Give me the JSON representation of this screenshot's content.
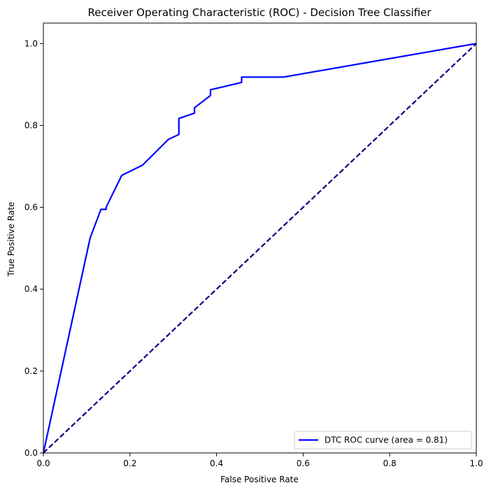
{
  "chart_data": {
    "type": "line",
    "title": "Receiver Operating Characteristic (ROC) - Decision Tree Classifier",
    "xlabel": "False Positive Rate",
    "ylabel": "True Positive Rate",
    "xlim": [
      0.0,
      1.0
    ],
    "ylim": [
      0.0,
      1.05
    ],
    "xticks": [
      0.0,
      0.2,
      0.4,
      0.6,
      0.8,
      1.0
    ],
    "yticks": [
      0.0,
      0.2,
      0.4,
      0.6,
      0.8,
      1.0
    ],
    "xtick_labels": [
      "0.0",
      "0.2",
      "0.4",
      "0.6",
      "0.8",
      "1.0"
    ],
    "ytick_labels": [
      "0.0",
      "0.2",
      "0.4",
      "0.6",
      "0.8",
      "1.0"
    ],
    "grid": false,
    "legend_position": "lower-right",
    "series": [
      {
        "name": "DTC ROC curve (area = 0.81)",
        "color": "#0000ff",
        "style": "solid",
        "x": [
          0.0,
          0.108,
          0.133,
          0.145,
          0.145,
          0.181,
          0.229,
          0.289,
          0.313,
          0.313,
          0.349,
          0.349,
          0.386,
          0.386,
          0.458,
          0.458,
          0.554,
          1.0
        ],
        "y": [
          0.0,
          0.525,
          0.595,
          0.595,
          0.6,
          0.678,
          0.703,
          0.766,
          0.778,
          0.817,
          0.83,
          0.843,
          0.873,
          0.887,
          0.905,
          0.918,
          0.918,
          1.0
        ]
      },
      {
        "name": "",
        "color": "#000080",
        "style": "dashed",
        "x": [
          0.0,
          1.0
        ],
        "y": [
          0.0,
          1.0
        ]
      }
    ]
  }
}
